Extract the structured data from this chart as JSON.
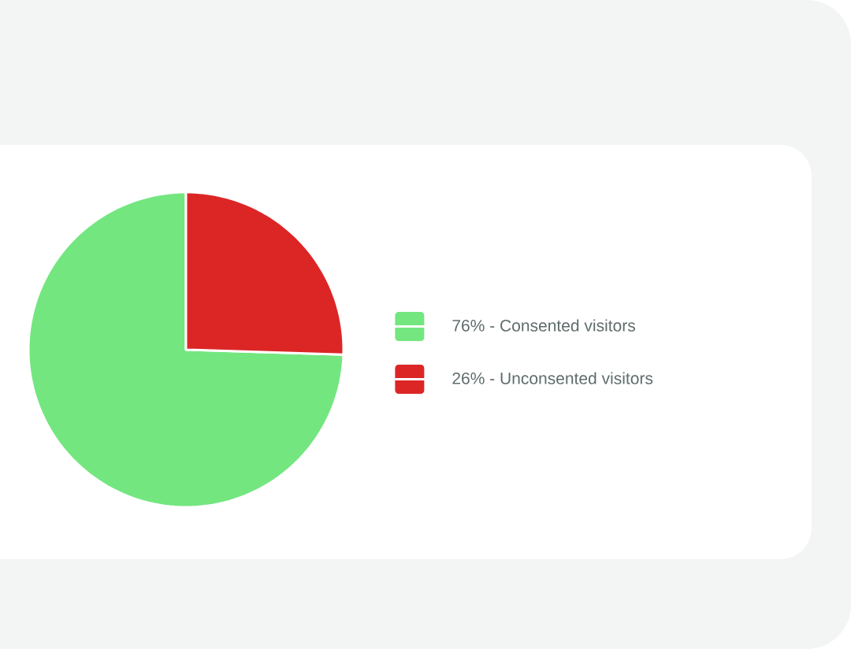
{
  "chart_data": {
    "type": "pie",
    "categories": [
      "76% - Consented visitors",
      "26% - Unconsented visitors"
    ],
    "values": [
      76,
      26
    ],
    "colors": [
      "#74e680",
      "#dc2626"
    ],
    "legend": "right"
  }
}
